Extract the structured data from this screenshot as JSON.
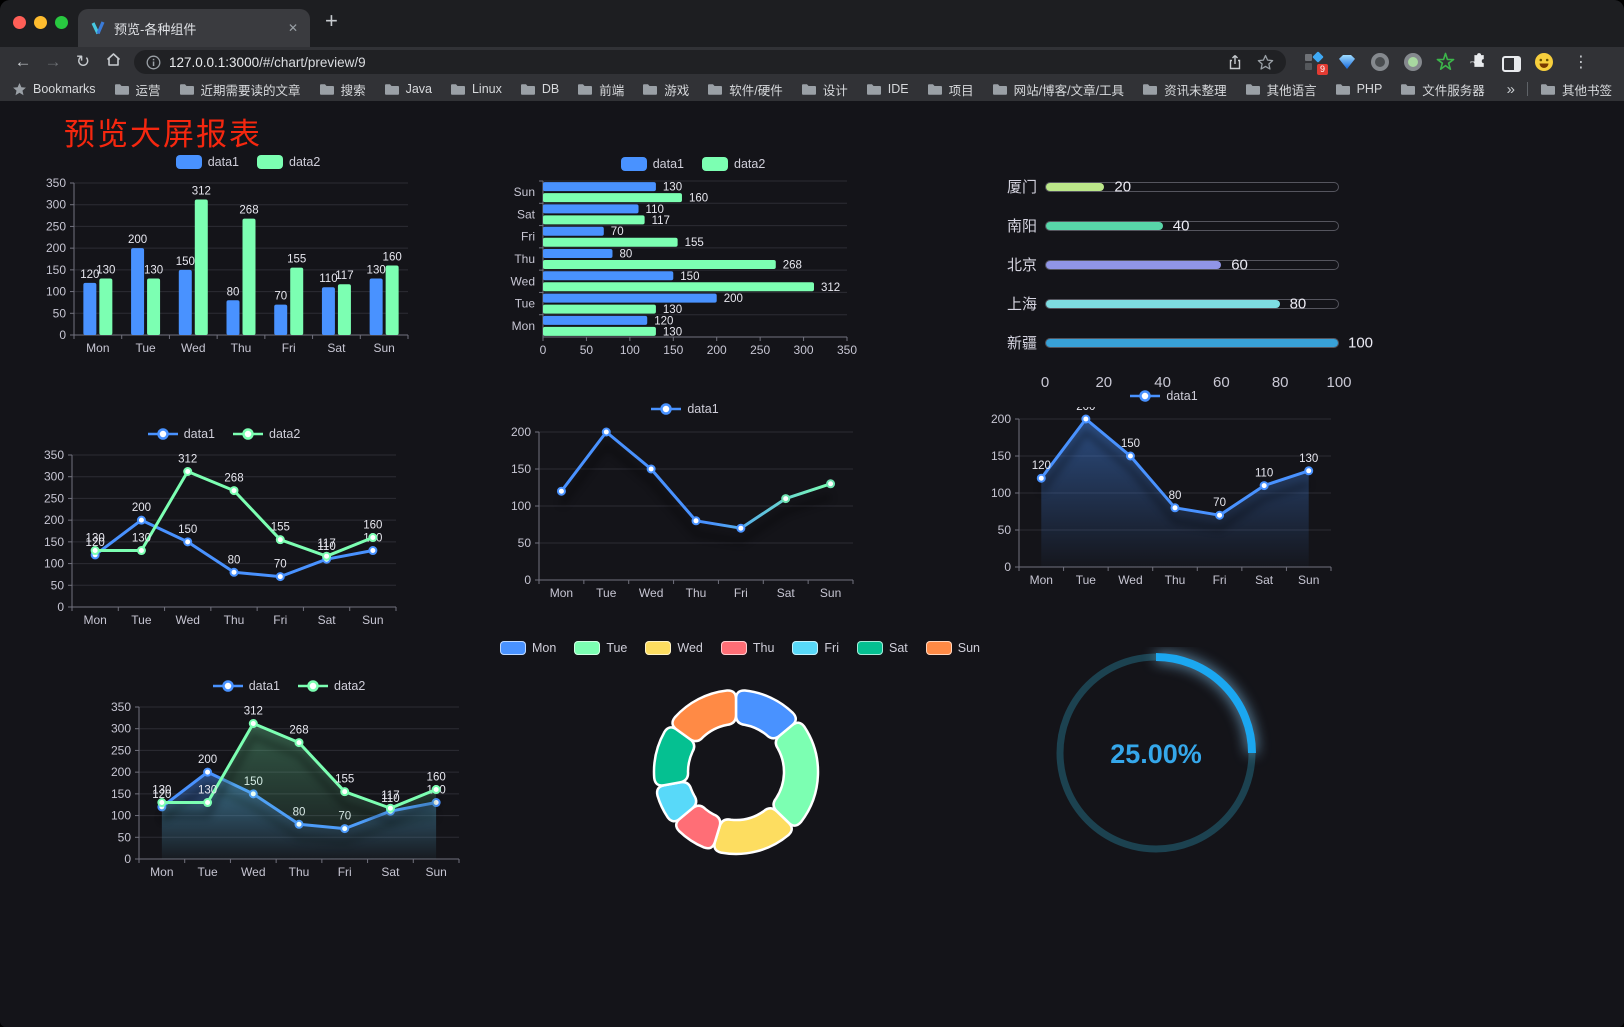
{
  "palette": {
    "traffic": [
      "#ff5f57",
      "#febc2e",
      "#28c840"
    ],
    "blue": "#4992ff",
    "green": "#7cffb2",
    "gauge_blue": "#1ba7f0",
    "gauge_track": "#1c4250",
    "gauge_text": "#35a7ea",
    "title_red": "#f5270f"
  },
  "browser": {
    "tab_title": "预览-各种组件",
    "tab_close": "✕",
    "new_tab": "+",
    "back": "←",
    "forward": "→",
    "reload": "↻",
    "url_domain": "127.0.0.1:3000",
    "url_path": "/#/chart/preview/9",
    "extension_badge": "9",
    "menu_dots": "⋮",
    "bookmarks_label": "Bookmarks",
    "bookmarks": [
      "运营",
      "近期需要读的文章",
      "搜索",
      "Java",
      "Linux",
      "DB",
      "前端",
      "游戏",
      "软件/硬件",
      "设计",
      "IDE",
      "项目",
      "网站/博客/文章/工具",
      "资讯未整理",
      "其他语言",
      "PHP",
      "文件服务器"
    ],
    "bookmarks_overflow": "»",
    "other_bookmarks": "其他书签"
  },
  "page": {
    "title": "预览大屏报表"
  },
  "chart_data": [
    {
      "id": "c1",
      "type": "bar",
      "title": "",
      "categories": [
        "Mon",
        "Tue",
        "Wed",
        "Thu",
        "Fri",
        "Sat",
        "Sun"
      ],
      "series": [
        {
          "name": "data1",
          "color": "#4992ff",
          "values": [
            120,
            200,
            150,
            80,
            70,
            110,
            130
          ]
        },
        {
          "name": "data2",
          "color": "#7cffb2",
          "values": [
            130,
            130,
            312,
            268,
            155,
            117,
            160
          ]
        }
      ],
      "ylim": [
        0,
        350
      ],
      "ytick_step": 50,
      "legend": "rect",
      "labels": true,
      "grid": true,
      "legend_position": "top"
    },
    {
      "id": "c2",
      "type": "hbar",
      "title": "",
      "categories": [
        "Mon",
        "Tue",
        "Wed",
        "Thu",
        "Fri",
        "Sat",
        "Sun"
      ],
      "series": [
        {
          "name": "data1",
          "color": "#4992ff",
          "values": [
            120,
            200,
            150,
            80,
            70,
            110,
            130
          ]
        },
        {
          "name": "data2",
          "color": "#7cffb2",
          "values": [
            130,
            130,
            312,
            268,
            155,
            117,
            160
          ]
        }
      ],
      "xlim": [
        0,
        350
      ],
      "xtick_step": 50,
      "legend": "rect",
      "labels": true,
      "grid": true,
      "legend_position": "top"
    },
    {
      "id": "c3",
      "type": "progress",
      "title": "",
      "rows": [
        {
          "label": "厦门",
          "value": 20,
          "color": "#bce78a"
        },
        {
          "label": "南阳",
          "value": 40,
          "color": "#58d6a9"
        },
        {
          "label": "北京",
          "value": 60,
          "color": "#9095e6"
        },
        {
          "label": "上海",
          "value": 80,
          "color": "#7edde2"
        },
        {
          "label": "新疆",
          "value": 100,
          "color": "#38a1d8"
        }
      ],
      "max": 100,
      "xticks": [
        0,
        20,
        40,
        60,
        80,
        100
      ]
    },
    {
      "id": "c4",
      "type": "line",
      "title": "",
      "categories": [
        "Mon",
        "Tue",
        "Wed",
        "Thu",
        "Fri",
        "Sat",
        "Sun"
      ],
      "series": [
        {
          "name": "data1",
          "color": "#4992ff",
          "values": [
            120,
            200,
            150,
            80,
            70,
            110,
            130
          ]
        },
        {
          "name": "data2",
          "color": "#7cffb2",
          "values": [
            130,
            130,
            312,
            268,
            155,
            117,
            160
          ]
        }
      ],
      "ylim": [
        0,
        350
      ],
      "ytick_step": 50,
      "legend": "line",
      "labels": true,
      "grid": true,
      "legend_position": "top"
    },
    {
      "id": "c5",
      "type": "line",
      "title": "",
      "categories": [
        "Mon",
        "Tue",
        "Wed",
        "Thu",
        "Fri",
        "Sat",
        "Sun"
      ],
      "series": [
        {
          "name": "data1",
          "color": "#4992ff",
          "values": [
            120,
            200,
            150,
            80,
            70,
            110,
            130
          ]
        }
      ],
      "ylim": [
        0,
        200
      ],
      "ytick_step": 50,
      "legend": "line",
      "labels": false,
      "grid": true,
      "stroke_gradient": [
        "#4992ff",
        "#4992ff",
        "#7cffb2"
      ],
      "shadow": true,
      "legend_position": "top"
    },
    {
      "id": "c6",
      "type": "line",
      "title": "",
      "categories": [
        "Mon",
        "Tue",
        "Wed",
        "Thu",
        "Fri",
        "Sat",
        "Sun"
      ],
      "series": [
        {
          "name": "data1",
          "color": "#4992ff",
          "values": [
            120,
            200,
            150,
            80,
            70,
            110,
            130
          ]
        }
      ],
      "ylim": [
        0,
        200
      ],
      "ytick_step": 50,
      "legend": "line",
      "labels": true,
      "grid": true,
      "area": true,
      "shadow": true,
      "legend_position": "top"
    },
    {
      "id": "c7",
      "type": "line",
      "title": "",
      "categories": [
        "Mon",
        "Tue",
        "Wed",
        "Thu",
        "Fri",
        "Sat",
        "Sun"
      ],
      "series": [
        {
          "name": "data1",
          "color": "#4992ff",
          "values": [
            120,
            200,
            150,
            80,
            70,
            110,
            130
          ]
        },
        {
          "name": "data2",
          "color": "#7cffb2",
          "values": [
            130,
            130,
            312,
            268,
            155,
            117,
            160
          ]
        }
      ],
      "ylim": [
        0,
        350
      ],
      "ytick_step": 50,
      "legend": "line",
      "labels": true,
      "grid": true,
      "area": true,
      "shadow": true,
      "legend_position": "top"
    },
    {
      "id": "c8",
      "type": "pie",
      "title": "",
      "slices": [
        {
          "label": "Mon",
          "value": 120,
          "color": "#4992ff"
        },
        {
          "label": "Tue",
          "value": 200,
          "color": "#7cffb2"
        },
        {
          "label": "Wed",
          "value": 150,
          "color": "#fddd60"
        },
        {
          "label": "Thu",
          "value": 80,
          "color": "#ff6e76"
        },
        {
          "label": "Fri",
          "value": 70,
          "color": "#58d9f9"
        },
        {
          "label": "Sat",
          "value": 110,
          "color": "#05c091"
        },
        {
          "label": "Sun",
          "value": 130,
          "color": "#ff8a45"
        }
      ],
      "inner_radius": 48,
      "outer_radius": 82,
      "legend": "rect-border",
      "legend_position": "top"
    },
    {
      "id": "c9",
      "type": "gauge",
      "title": "",
      "percent": 25,
      "value_label": "25.00%"
    }
  ]
}
